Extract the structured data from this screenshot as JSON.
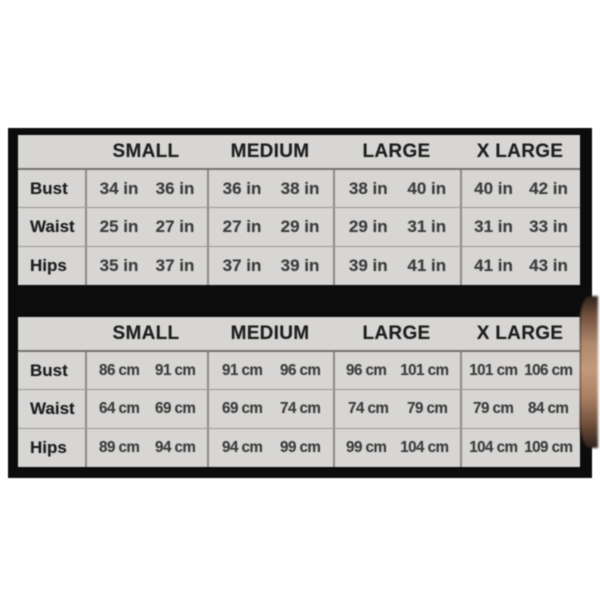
{
  "colors": {
    "page_background": "#ffffff",
    "panel_black": "#0c0c0c",
    "table_background": "#d7d6d4",
    "grid_line_light": "#9a9896",
    "grid_line_dark": "#767472",
    "column_divider": "#8c8b89",
    "text_dark": "#1e1e1e",
    "text_value": "#3c3c3c",
    "photo_skin_tone": "#b08a6e"
  },
  "tables": [
    {
      "id": "inches",
      "unit": "in",
      "size_headers": [
        "SMALL",
        "MEDIUM",
        "LARGE",
        "X LARGE"
      ],
      "rows": [
        {
          "label": "Bust",
          "values": [
            [
              "34 in",
              "36 in"
            ],
            [
              "36 in",
              "38 in"
            ],
            [
              "38 in",
              "40 in"
            ],
            [
              "40 in",
              "42 in"
            ]
          ]
        },
        {
          "label": "Waist",
          "values": [
            [
              "25 in",
              "27 in"
            ],
            [
              "27 in",
              "29 in"
            ],
            [
              "29 in",
              "31 in"
            ],
            [
              "31 in",
              "33 in"
            ]
          ]
        },
        {
          "label": "Hips",
          "values": [
            [
              "35 in",
              "37 in"
            ],
            [
              "37 in",
              "39 in"
            ],
            [
              "39 in",
              "41 in"
            ],
            [
              "41 in",
              "43 in"
            ]
          ]
        }
      ]
    },
    {
      "id": "centimeters",
      "unit": "cm",
      "size_headers": [
        "SMALL",
        "MEDIUM",
        "LARGE",
        "X LARGE"
      ],
      "rows": [
        {
          "label": "Bust",
          "values": [
            [
              "86 cm",
              "91 cm"
            ],
            [
              "91 cm",
              "96 cm"
            ],
            [
              "96 cm",
              "101 cm"
            ],
            [
              "101 cm",
              "106 cm"
            ]
          ]
        },
        {
          "label": "Waist",
          "values": [
            [
              "64 cm",
              "69 cm"
            ],
            [
              "69 cm",
              "74 cm"
            ],
            [
              "74 cm",
              "79 cm"
            ],
            [
              "79 cm",
              "84 cm"
            ]
          ]
        },
        {
          "label": "Hips",
          "values": [
            [
              "89 cm",
              "94 cm"
            ],
            [
              "94 cm",
              "99 cm"
            ],
            [
              "99 cm",
              "104 cm"
            ],
            [
              "104 cm",
              "109 cm"
            ]
          ]
        }
      ]
    }
  ],
  "chart_data": [
    {
      "type": "table",
      "title": "Size chart (inches)",
      "columns": [
        "",
        "SMALL",
        "SMALL",
        "MEDIUM",
        "MEDIUM",
        "LARGE",
        "LARGE",
        "X LARGE",
        "X LARGE"
      ],
      "rows": [
        [
          "Bust",
          "34 in",
          "36 in",
          "36 in",
          "38 in",
          "38 in",
          "40 in",
          "40 in",
          "42 in"
        ],
        [
          "Waist",
          "25 in",
          "27 in",
          "27 in",
          "29 in",
          "29 in",
          "31 in",
          "31 in",
          "33 in"
        ],
        [
          "Hips",
          "35 in",
          "37 in",
          "37 in",
          "39 in",
          "39 in",
          "41 in",
          "41 in",
          "43 in"
        ]
      ]
    },
    {
      "type": "table",
      "title": "Size chart (centimeters)",
      "columns": [
        "",
        "SMALL",
        "SMALL",
        "MEDIUM",
        "MEDIUM",
        "LARGE",
        "LARGE",
        "X LARGE",
        "X LARGE"
      ],
      "rows": [
        [
          "Bust",
          "86 cm",
          "91 cm",
          "91 cm",
          "96 cm",
          "96 cm",
          "101 cm",
          "101 cm",
          "106 cm"
        ],
        [
          "Waist",
          "64 cm",
          "69 cm",
          "69 cm",
          "74 cm",
          "74 cm",
          "79 cm",
          "79 cm",
          "84 cm"
        ],
        [
          "Hips",
          "89 cm",
          "94 cm",
          "94 cm",
          "99 cm",
          "99 cm",
          "104 cm",
          "104 cm",
          "109 cm"
        ]
      ]
    }
  ]
}
